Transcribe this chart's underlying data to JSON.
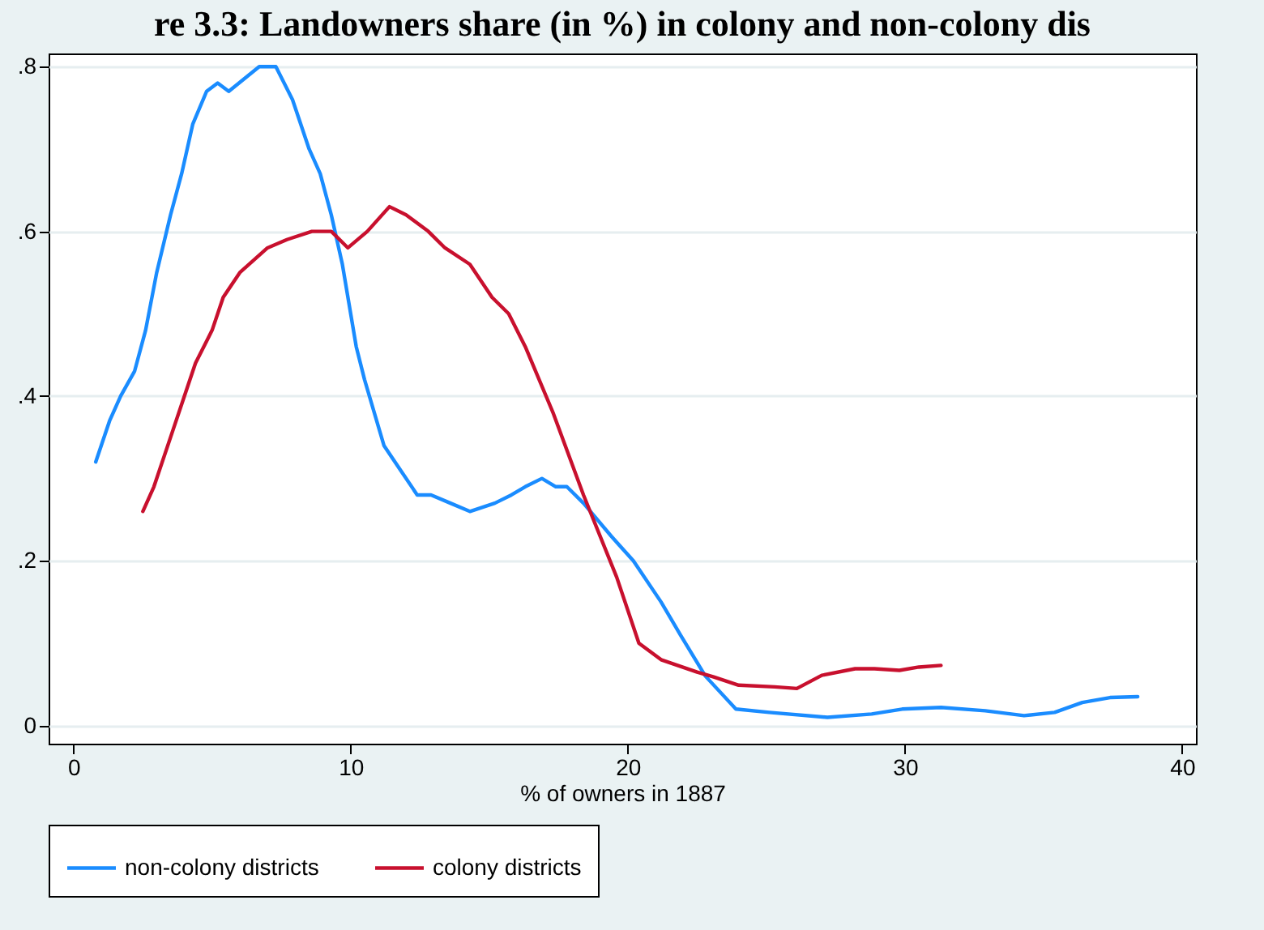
{
  "chart_data": {
    "type": "line",
    "title": "re 3.3: Landowners share (in %) in colony and non-colony dis",
    "xlabel": "% of owners in 1887",
    "series": [
      {
        "name": "non-colony districts",
        "color": "#1a8cff",
        "x": [
          0.8,
          1.3,
          1.7,
          2.2,
          2.6,
          3.0,
          3.5,
          3.9,
          4.3,
          4.8,
          5.2,
          5.6,
          6.7,
          7.3,
          7.9,
          8.5,
          8.9,
          9.3,
          9.7,
          10.2,
          10.5,
          11.2,
          11.8,
          12.4,
          12.9,
          13.6,
          14.3,
          15.2,
          15.8,
          16.3,
          16.9,
          17.4,
          17.8,
          18.4,
          19.4,
          20.2,
          21.2,
          21.9,
          22.8,
          23.9,
          25.1,
          27.2,
          28.8,
          29.9,
          31.3,
          32.9,
          34.3,
          35.4,
          36.4,
          37.4,
          38.4
        ],
        "values": [
          0.32,
          0.37,
          0.4,
          0.43,
          0.48,
          0.55,
          0.62,
          0.67,
          0.73,
          0.77,
          0.78,
          0.77,
          0.8,
          0.8,
          0.76,
          0.7,
          0.67,
          0.62,
          0.56,
          0.46,
          0.42,
          0.34,
          0.31,
          0.28,
          0.28,
          0.27,
          0.26,
          0.27,
          0.28,
          0.29,
          0.3,
          0.29,
          0.29,
          0.27,
          0.23,
          0.2,
          0.15,
          0.11,
          0.06,
          0.02,
          0.016,
          0.01,
          0.014,
          0.02,
          0.022,
          0.018,
          0.012,
          0.016,
          0.028,
          0.034,
          0.035
        ]
      },
      {
        "name": "colony districts",
        "color": "#c8102e",
        "x": [
          2.5,
          2.9,
          3.6,
          4.4,
          5.0,
          5.4,
          6.0,
          7.0,
          7.7,
          8.6,
          9.3,
          9.9,
          10.6,
          11.4,
          12.0,
          12.8,
          13.4,
          14.3,
          15.1,
          15.7,
          16.3,
          17.3,
          18.4,
          19.6,
          20.4,
          21.2,
          22.5,
          23.1,
          24.0,
          25.3,
          26.1,
          27.0,
          28.2,
          28.9,
          29.8,
          30.5,
          31.3
        ],
        "values": [
          0.26,
          0.29,
          0.36,
          0.44,
          0.48,
          0.52,
          0.55,
          0.58,
          0.59,
          0.6,
          0.6,
          0.58,
          0.6,
          0.63,
          0.62,
          0.6,
          0.58,
          0.56,
          0.52,
          0.5,
          0.46,
          0.38,
          0.28,
          0.18,
          0.1,
          0.08,
          0.065,
          0.059,
          0.049,
          0.047,
          0.045,
          0.061,
          0.069,
          0.069,
          0.067,
          0.071,
          0.073
        ]
      }
    ],
    "xlim": [
      -0.9,
      40.5
    ],
    "xticks": [
      0,
      10,
      20,
      30,
      40
    ],
    "ylim": [
      -0.022,
      0.816
    ],
    "yticks": [
      0,
      {
        "value": 0.2,
        "label": ".2"
      },
      {
        "value": 0.4,
        "label": ".4"
      },
      {
        "value": 0.6,
        "label": ".6"
      },
      {
        "value": 0.8,
        "label": ".8"
      }
    ],
    "grid": "y",
    "legend": "bottom",
    "marker": "none",
    "line_style": "solid"
  }
}
